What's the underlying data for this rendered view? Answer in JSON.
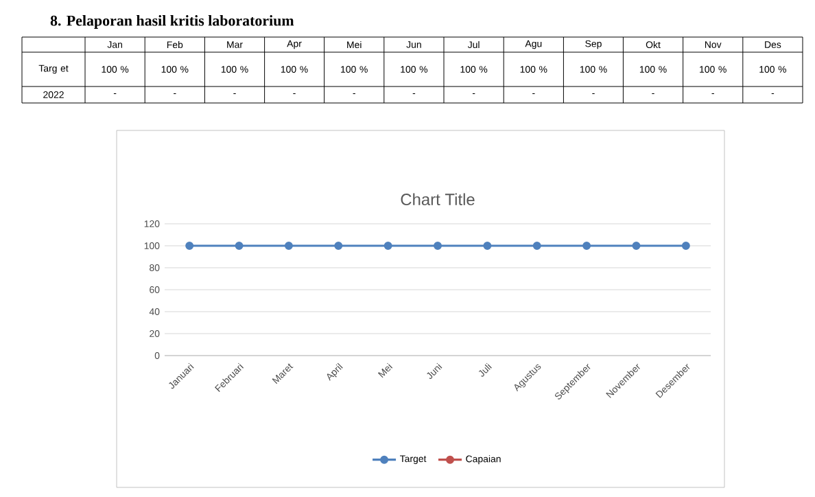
{
  "chart_data": {
    "type": "line",
    "title": "8.   Pelaporan hasil kritis laboratorium",
    "subtitle": "Chart Title",
    "categories": [
      "Januari",
      "Februari",
      "Maret",
      "April",
      "Mei",
      "Juni",
      "Juli",
      "Agustus",
      "September",
      "November",
      "Desember"
    ],
    "series": [
      {
        "name": "Target",
        "color": "#4f81bd",
        "values": [
          100,
          100,
          100,
          100,
          100,
          100,
          100,
          100,
          100,
          100,
          100
        ]
      },
      {
        "name": "Capaian",
        "color": "#c0504d",
        "values": [
          null,
          null,
          null,
          null,
          null,
          null,
          null,
          null,
          null,
          null,
          null
        ]
      }
    ],
    "ylim": [
      0,
      120
    ],
    "yticks": [
      0,
      20,
      40,
      60,
      80,
      100,
      120
    ],
    "grid": "y",
    "legend": "bottom",
    "marker": "circle",
    "line_style": "solid",
    "annotations": [
      "Jan",
      "Feb",
      "Mar",
      "Apr",
      "Mei",
      "Jun",
      "Jul",
      "Agu",
      "Sep",
      "Okt",
      "Nov",
      "Des",
      "Targ et",
      "100 %",
      "100 %",
      "100 %",
      "100 %",
      "100 %",
      "100 %",
      "100 %",
      "100 %",
      "100 %",
      "100 %",
      "100 %",
      "100 %",
      "2022",
      "-",
      "-",
      "-",
      "-",
      "-",
      "-",
      "-",
      "-",
      "-",
      "-",
      "-",
      "-"
    ]
  }
}
